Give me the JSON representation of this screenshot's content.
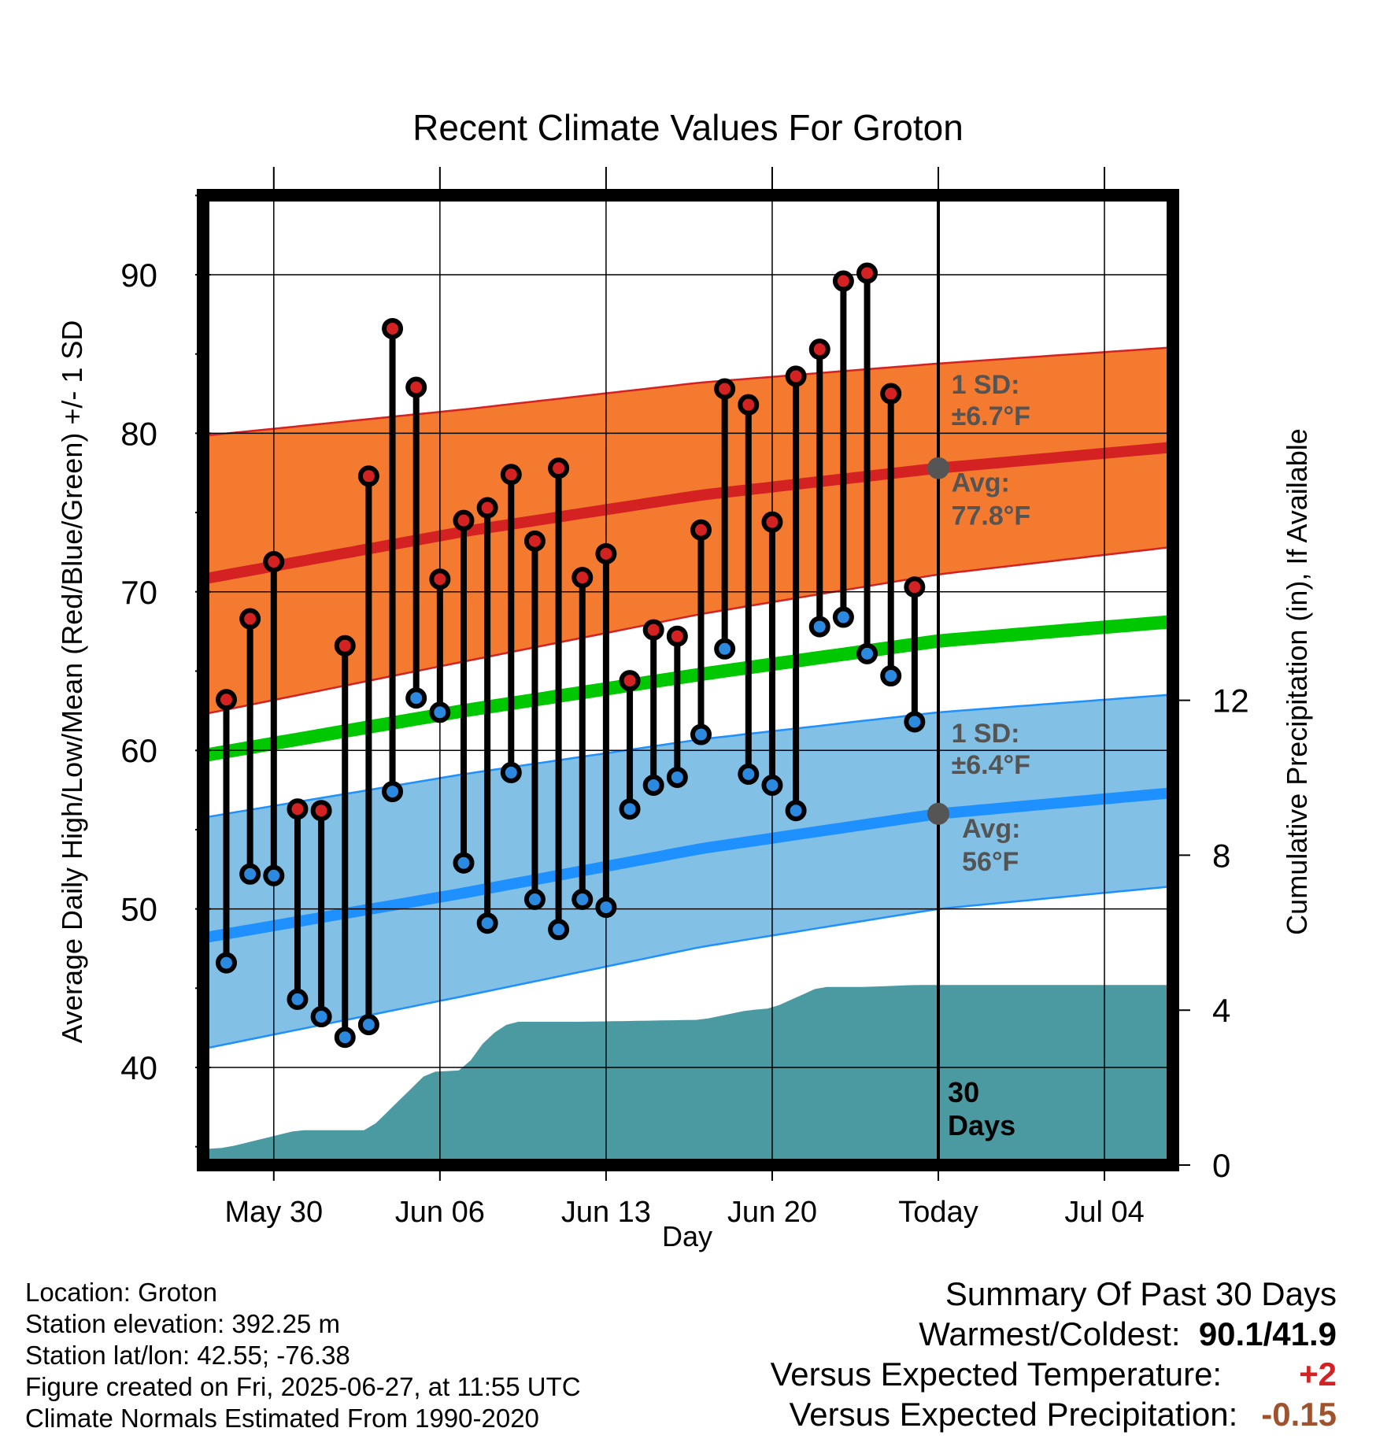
{
  "chart_data": {
    "type": "line",
    "title": "Recent Climate Values For Groton",
    "xlabel": "Day",
    "ylabel_left": "Average Daily High/Low/Mean (Red/Blue/Green) +/- 1 SD",
    "ylabel_right": "Cumulative Precipitation (in), If Available",
    "x_tick_labels": [
      "May 30",
      "Jun 06",
      "Jun 13",
      "Jun 20",
      "Today",
      "Jul 04"
    ],
    "y_left_ticks": [
      40,
      50,
      60,
      70,
      80,
      90
    ],
    "y_left_range": [
      34.8,
      95
    ],
    "y_right_ticks": [
      0,
      4,
      8,
      12
    ],
    "y_right_range": [
      0,
      13.3
    ],
    "x_range_days": [
      -33.2,
      9.7
    ],
    "grid": true,
    "today_label": "30 Days",
    "daily_highs": [
      63.2,
      68.3,
      71.9,
      56.3,
      56.2,
      66.6,
      77.3,
      86.6,
      82.9,
      70.8,
      74.5,
      75.3,
      77.4,
      73.2,
      77.8,
      70.9,
      72.4,
      64.4,
      67.6,
      67.2,
      73.9,
      82.8,
      81.8,
      74.4,
      83.6,
      85.3,
      89.6,
      90.1,
      82.5,
      70.3
    ],
    "daily_lows": [
      46.6,
      52.2,
      52.1,
      44.3,
      43.2,
      41.9,
      42.7,
      57.4,
      63.3,
      62.4,
      52.9,
      49.1,
      58.6,
      50.6,
      48.7,
      50.6,
      50.1,
      56.3,
      57.8,
      58.3,
      61.0,
      66.4,
      58.5,
      57.8,
      56.2,
      67.8,
      68.4,
      66.1,
      64.7,
      61.8
    ],
    "normal_high": {
      "x": [
        -33.2,
        -20,
        -10,
        0,
        9.7
      ],
      "y": [
        70.2,
        73.8,
        76.1,
        77.8,
        79.1
      ]
    },
    "normal_high_sd_upper": {
      "x": [
        -33.2,
        -20,
        -10,
        0,
        9.7
      ],
      "y": [
        79.5,
        81.5,
        83.2,
        84.4,
        85.4
      ]
    },
    "normal_high_sd_lower": {
      "x": [
        -33.2,
        -20,
        -10,
        0,
        9.7
      ],
      "y": [
        61.6,
        65.6,
        68.6,
        71.1,
        72.8
      ]
    },
    "normal_mean": {
      "x": [
        -33.2,
        -20,
        -10,
        0,
        9.7
      ],
      "y": [
        59.1,
        62.5,
        64.8,
        66.9,
        68.1
      ]
    },
    "normal_low": {
      "x": [
        -33.2,
        -20,
        -10,
        0,
        9.7
      ],
      "y": [
        47.6,
        51.0,
        53.8,
        56.0,
        57.3
      ]
    },
    "normal_low_sd_upper": {
      "x": [
        -33.2,
        -20,
        -10,
        0,
        9.7
      ],
      "y": [
        55.2,
        58.5,
        60.7,
        62.4,
        63.5
      ]
    },
    "normal_low_sd_lower": {
      "x": [
        -33.2,
        -20,
        -10,
        0,
        9.7
      ],
      "y": [
        40.5,
        44.5,
        47.6,
        50.0,
        51.4
      ]
    },
    "cumulative_precip": {
      "x": [
        -33.2,
        -32.5,
        -30,
        -29,
        -27,
        -24,
        -23,
        -21.5,
        -20,
        -19,
        -18,
        -17,
        -15,
        -10,
        -8,
        -7,
        -5,
        -3,
        -1,
        0,
        9.7
      ],
      "y": [
        0,
        0.35,
        0.45,
        0.6,
        0.9,
        0.9,
        1.5,
        2.4,
        2.45,
        3.3,
        3.7,
        3.7,
        3.7,
        3.75,
        4.0,
        4.05,
        4.6,
        4.6,
        4.65,
        4.65,
        4.65
      ]
    },
    "annotations": {
      "high_sd_line1": "1 SD:",
      "high_sd_line2": "±6.7°F",
      "high_avg_line1": "Avg:",
      "high_avg_line2": "77.8°F",
      "low_sd_line1": "1 SD:",
      "low_sd_line2": "±6.4°F",
      "low_avg_line1": "Avg:",
      "low_avg_line2": "56°F",
      "today_line1": "30",
      "today_line2": "Days"
    },
    "colors": {
      "high_band": "#f47a30",
      "high_line": "#d42222",
      "mean_line": "#00c800",
      "low_band": "#82c0e6",
      "low_line": "#1e90ff",
      "precip": "#4b9aa2",
      "high_dot": "#d42222",
      "low_dot": "#2b8ae0"
    }
  },
  "footer": {
    "location": "Location: Groton",
    "elevation": "Station elevation: 392.25 m",
    "latlon": "Station lat/lon: 42.55; -76.38",
    "created": "Figure created on Fri, 2025-06-27, at 11:55 UTC",
    "normals": "Climate Normals Estimated From 1990-2020"
  },
  "summary": {
    "heading": "Summary Of Past 30 Days",
    "warmest_label": "Warmest/Coldest:",
    "warmest_value": "90.1/41.9",
    "temp_label": "Versus Expected Temperature:",
    "temp_value": "+2",
    "temp_color": "#d42222",
    "precip_label": "Versus Expected Precipitation:",
    "precip_value": "-0.15",
    "precip_color": "#a0522d"
  }
}
